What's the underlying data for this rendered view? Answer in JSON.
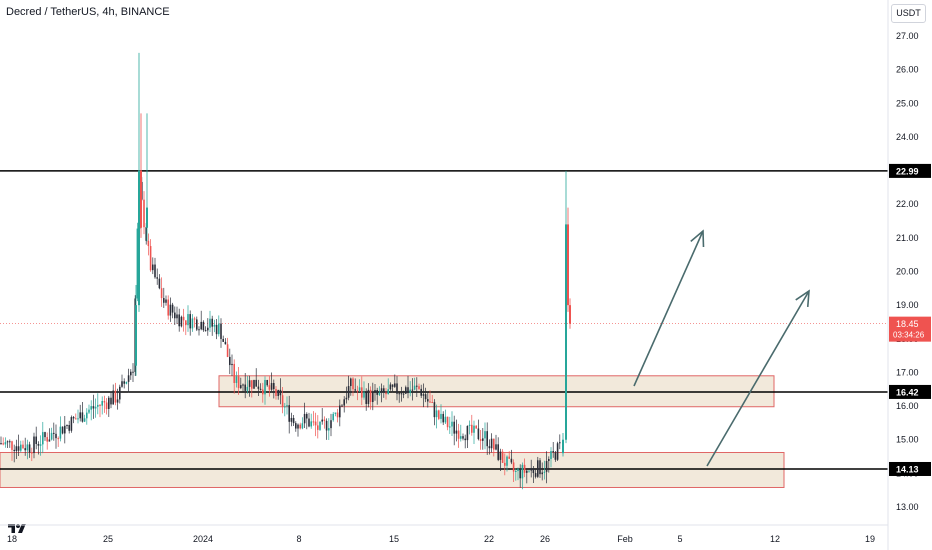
{
  "header": {
    "title": "Decred / TetherUS, 4h, BINANCE"
  },
  "price_axis": {
    "currency": "USDT",
    "ticks": [
      "27.00",
      "26.00",
      "25.00",
      "24.00",
      "23.00",
      "22.00",
      "21.00",
      "20.00",
      "19.00",
      "18.00",
      "17.00",
      "16.00",
      "15.00",
      "14.00",
      "13.00"
    ]
  },
  "time_axis": {
    "ticks": [
      "18",
      "25",
      "2024",
      "8",
      "15",
      "22",
      "26",
      "Feb",
      "5",
      "12",
      "19"
    ]
  },
  "labels": {
    "level_high": "22.99",
    "level_mid": "16.42",
    "level_low": "14.13",
    "last_price": "18.45",
    "countdown": "03:34:26"
  },
  "colors": {
    "up": "#26a69a",
    "down": "#ef5350",
    "candle_dark": "#2a2e39",
    "zone_fill": "#efe3d2",
    "zone_border": "#e06666",
    "arrow": "#4a6b6d",
    "level_line": "#000000",
    "last_price_bg": "#ef5350"
  },
  "chart_data": {
    "type": "candlestick",
    "title": "Decred / TetherUS, 4h, BINANCE",
    "y_unit": "USDT",
    "ylim": [
      12.6,
      27.6
    ],
    "y_ticks": [
      13,
      14,
      15,
      16,
      17,
      18,
      19,
      20,
      21,
      22,
      23,
      24,
      25,
      26,
      27
    ],
    "x_ticks": [
      "18",
      "25",
      "2024",
      "8",
      "15",
      "22",
      "26",
      "Feb",
      "5",
      "12",
      "19"
    ],
    "approx_ohlc_path": [
      {
        "date": "Dec 18",
        "close": 14.9
      },
      {
        "date": "Dec 21",
        "close": 15.5
      },
      {
        "date": "Dec 25",
        "close": 16.4
      },
      {
        "date": "Dec 26",
        "close": 18.2
      },
      {
        "date": "Dec 27",
        "high": 26.5,
        "close": 22.8
      },
      {
        "date": "Dec 29",
        "close": 20.0
      },
      {
        "date": "Jan 1",
        "close": 19.0
      },
      {
        "date": "Jan 3",
        "close": 18.3
      },
      {
        "date": "Jan 5",
        "close": 16.6
      },
      {
        "date": "Jan 8",
        "close": 15.5
      },
      {
        "date": "Jan 10",
        "close": 16.2
      },
      {
        "date": "Jan 12",
        "close": 16.6
      },
      {
        "date": "Jan 15",
        "close": 16.5
      },
      {
        "date": "Jan 18",
        "close": 16.1
      },
      {
        "date": "Jan 20",
        "close": 15.2
      },
      {
        "date": "Jan 22",
        "close": 14.6
      },
      {
        "date": "Jan 24",
        "close": 14.1
      },
      {
        "date": "Jan 26",
        "close": 14.6
      },
      {
        "date": "Jan 27",
        "high": 22.99,
        "close": 21.3
      },
      {
        "date": "Jan 27",
        "close": 18.45
      }
    ],
    "horizontal_levels": [
      22.99,
      16.42,
      14.13
    ],
    "zones": [
      {
        "from": 15.98,
        "to": 16.9
      },
      {
        "from": 13.58,
        "to": 14.62
      }
    ],
    "last_price": 18.45,
    "grid": false,
    "legend": "none"
  }
}
